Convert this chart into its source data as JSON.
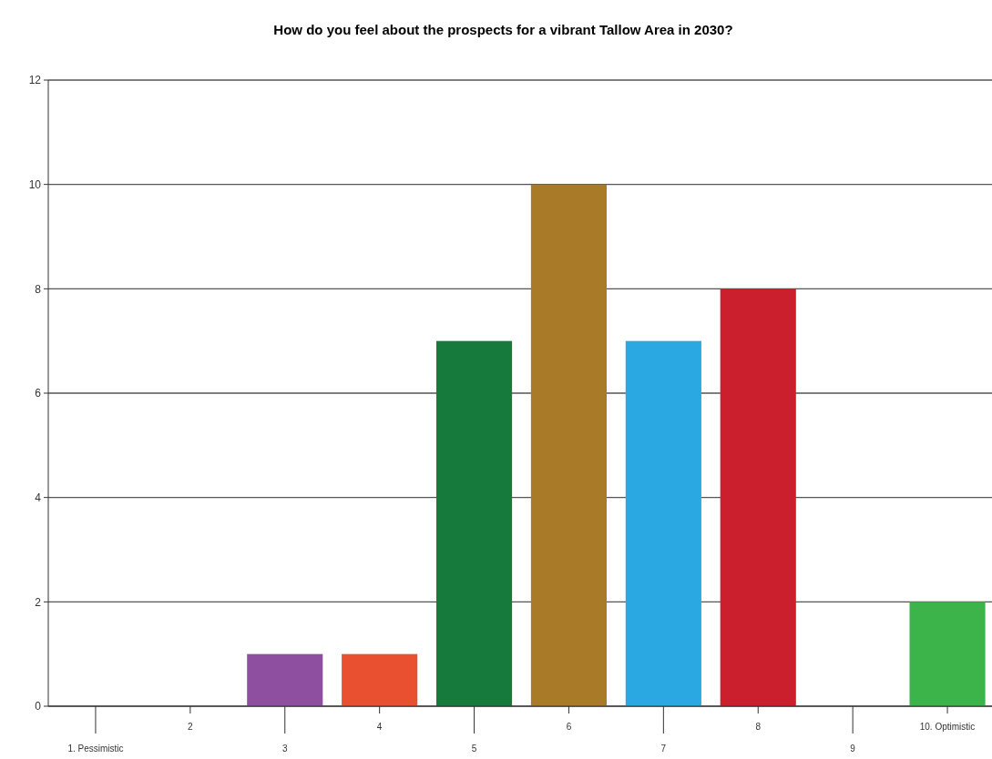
{
  "chart_data": {
    "type": "bar",
    "title": "How do you feel about the prospects for a vibrant Tallow Area in 2030?",
    "categories": [
      "1. Pessimistic",
      "2",
      "3",
      "4",
      "5",
      "6",
      "7",
      "8",
      "9",
      "10. Optimistic"
    ],
    "values": [
      0,
      0,
      1,
      1,
      7,
      10,
      7,
      8,
      0,
      2
    ],
    "colors": [
      "#8e4fa0",
      "#8e4fa0",
      "#8e4fa0",
      "#e8502f",
      "#157a3c",
      "#a97a28",
      "#2aa8e2",
      "#cc1f2e",
      "#3cb44a",
      "#3cb44a"
    ],
    "ylim": [
      0,
      12
    ],
    "yticks": [
      0,
      2,
      4,
      6,
      8,
      10,
      12
    ],
    "grid": "y"
  }
}
